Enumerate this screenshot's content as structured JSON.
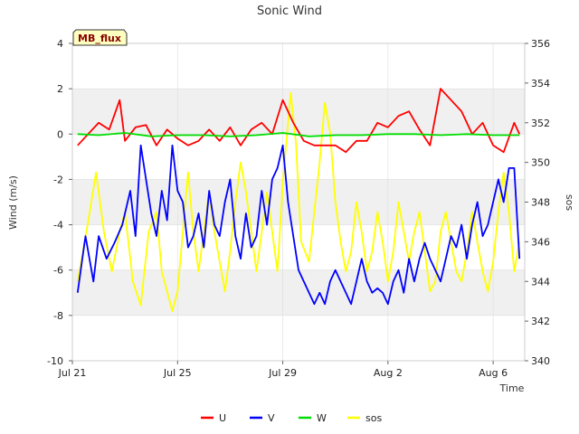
{
  "chart_data": {
    "type": "line",
    "title": "Sonic Wind",
    "badge": "MB_flux",
    "xlabel": "Time",
    "ylabel_left": "Wind (m/s)",
    "ylabel_right": "sos",
    "xlim": [
      0,
      17.2
    ],
    "ylim_left": [
      -10,
      4
    ],
    "ylim_right": [
      340,
      356
    ],
    "x_ticks": [
      {
        "label": "Jul 21",
        "day": 0
      },
      {
        "label": "Jul 25",
        "day": 4
      },
      {
        "label": "Jul 29",
        "day": 8
      },
      {
        "label": "Aug 2",
        "day": 12
      },
      {
        "label": "Aug 6",
        "day": 16
      }
    ],
    "left_ticks": [
      4,
      2,
      0,
      -2,
      -4,
      -6,
      -8,
      -10
    ],
    "right_ticks": [
      356,
      354,
      352,
      350,
      348,
      346,
      344,
      342,
      340
    ],
    "bands_left": [
      [
        0,
        2
      ],
      [
        -4,
        -2
      ],
      [
        -8,
        -6
      ]
    ],
    "series": [
      {
        "name": "U",
        "color": "#ff0000",
        "axis": "left",
        "points": [
          [
            0.2,
            -0.5
          ],
          [
            0.6,
            0
          ],
          [
            1.0,
            0.5
          ],
          [
            1.4,
            0.2
          ],
          [
            1.8,
            1.5
          ],
          [
            2.0,
            -0.3
          ],
          [
            2.4,
            0.3
          ],
          [
            2.8,
            0.4
          ],
          [
            3.2,
            -0.5
          ],
          [
            3.6,
            0.2
          ],
          [
            4.0,
            -0.2
          ],
          [
            4.4,
            -0.5
          ],
          [
            4.8,
            -0.3
          ],
          [
            5.2,
            0.2
          ],
          [
            5.6,
            -0.3
          ],
          [
            6.0,
            0.3
          ],
          [
            6.4,
            -0.5
          ],
          [
            6.8,
            0.2
          ],
          [
            7.2,
            0.5
          ],
          [
            7.6,
            0
          ],
          [
            8.0,
            1.5
          ],
          [
            8.4,
            0.5
          ],
          [
            8.8,
            -0.3
          ],
          [
            9.2,
            -0.5
          ],
          [
            9.6,
            -0.5
          ],
          [
            10.0,
            -0.5
          ],
          [
            10.4,
            -0.8
          ],
          [
            10.8,
            -0.3
          ],
          [
            11.2,
            -0.3
          ],
          [
            11.6,
            0.5
          ],
          [
            12.0,
            0.3
          ],
          [
            12.4,
            0.8
          ],
          [
            12.8,
            1.0
          ],
          [
            13.2,
            0.2
          ],
          [
            13.6,
            -0.5
          ],
          [
            14.0,
            2.0
          ],
          [
            14.4,
            1.5
          ],
          [
            14.8,
            1.0
          ],
          [
            15.2,
            0
          ],
          [
            15.6,
            0.5
          ],
          [
            16.0,
            -0.5
          ],
          [
            16.4,
            -0.8
          ],
          [
            16.8,
            0.5
          ],
          [
            17.0,
            0
          ]
        ]
      },
      {
        "name": "V",
        "color": "#0000ff",
        "axis": "left",
        "points": [
          [
            0.2,
            -7.0
          ],
          [
            0.5,
            -4.5
          ],
          [
            0.8,
            -6.5
          ],
          [
            1.0,
            -4.5
          ],
          [
            1.3,
            -5.5
          ],
          [
            1.6,
            -4.8
          ],
          [
            1.9,
            -4.0
          ],
          [
            2.2,
            -2.5
          ],
          [
            2.4,
            -4.5
          ],
          [
            2.6,
            -0.5
          ],
          [
            2.8,
            -2.0
          ],
          [
            3.0,
            -3.5
          ],
          [
            3.2,
            -4.5
          ],
          [
            3.4,
            -2.5
          ],
          [
            3.6,
            -3.8
          ],
          [
            3.8,
            -0.5
          ],
          [
            4.0,
            -2.5
          ],
          [
            4.2,
            -3.0
          ],
          [
            4.4,
            -5.0
          ],
          [
            4.6,
            -4.5
          ],
          [
            4.8,
            -3.5
          ],
          [
            5.0,
            -5.0
          ],
          [
            5.2,
            -2.5
          ],
          [
            5.4,
            -4.0
          ],
          [
            5.6,
            -4.5
          ],
          [
            5.8,
            -3.0
          ],
          [
            6.0,
            -2.0
          ],
          [
            6.2,
            -4.5
          ],
          [
            6.4,
            -5.5
          ],
          [
            6.6,
            -3.5
          ],
          [
            6.8,
            -5.0
          ],
          [
            7.0,
            -4.5
          ],
          [
            7.2,
            -2.5
          ],
          [
            7.4,
            -4.0
          ],
          [
            7.6,
            -2.0
          ],
          [
            7.8,
            -1.5
          ],
          [
            8.0,
            -0.5
          ],
          [
            8.2,
            -3.0
          ],
          [
            8.4,
            -4.5
          ],
          [
            8.6,
            -6.0
          ],
          [
            8.8,
            -6.5
          ],
          [
            9.0,
            -7.0
          ],
          [
            9.2,
            -7.5
          ],
          [
            9.4,
            -7.0
          ],
          [
            9.6,
            -7.5
          ],
          [
            9.8,
            -6.5
          ],
          [
            10.0,
            -6.0
          ],
          [
            10.2,
            -6.5
          ],
          [
            10.4,
            -7.0
          ],
          [
            10.6,
            -7.5
          ],
          [
            10.8,
            -6.5
          ],
          [
            11.0,
            -5.5
          ],
          [
            11.2,
            -6.5
          ],
          [
            11.4,
            -7.0
          ],
          [
            11.6,
            -6.8
          ],
          [
            11.8,
            -7.0
          ],
          [
            12.0,
            -7.5
          ],
          [
            12.2,
            -6.5
          ],
          [
            12.4,
            -6.0
          ],
          [
            12.6,
            -7.0
          ],
          [
            12.8,
            -5.5
          ],
          [
            13.0,
            -6.5
          ],
          [
            13.2,
            -5.5
          ],
          [
            13.4,
            -4.8
          ],
          [
            13.6,
            -5.5
          ],
          [
            13.8,
            -6.0
          ],
          [
            14.0,
            -6.5
          ],
          [
            14.2,
            -5.5
          ],
          [
            14.4,
            -4.5
          ],
          [
            14.6,
            -5.0
          ],
          [
            14.8,
            -4.0
          ],
          [
            15.0,
            -5.5
          ],
          [
            15.2,
            -4.0
          ],
          [
            15.4,
            -3.0
          ],
          [
            15.6,
            -4.5
          ],
          [
            15.8,
            -4.0
          ],
          [
            16.0,
            -3.0
          ],
          [
            16.2,
            -2.0
          ],
          [
            16.4,
            -3.0
          ],
          [
            16.6,
            -1.5
          ],
          [
            16.8,
            -1.5
          ],
          [
            17.0,
            -5.5
          ]
        ]
      },
      {
        "name": "W",
        "color": "#00dd00",
        "axis": "left",
        "points": [
          [
            0.2,
            0
          ],
          [
            1.0,
            -0.05
          ],
          [
            2.0,
            0.05
          ],
          [
            3.0,
            -0.1
          ],
          [
            4.0,
            -0.05
          ],
          [
            5.0,
            -0.05
          ],
          [
            6.0,
            -0.1
          ],
          [
            7.0,
            -0.05
          ],
          [
            8.0,
            0.05
          ],
          [
            9.0,
            -0.1
          ],
          [
            10.0,
            -0.05
          ],
          [
            11.0,
            -0.05
          ],
          [
            12.0,
            0
          ],
          [
            13.0,
            0
          ],
          [
            14.0,
            -0.05
          ],
          [
            15.0,
            0
          ],
          [
            16.0,
            -0.05
          ],
          [
            17.0,
            -0.05
          ]
        ]
      },
      {
        "name": "sos",
        "color": "#ffff00",
        "axis": "right",
        "points": [
          [
            0.2,
            344.0
          ],
          [
            0.6,
            347.0
          ],
          [
            0.9,
            349.5
          ],
          [
            1.2,
            346.5
          ],
          [
            1.5,
            344.5
          ],
          [
            1.8,
            346.5
          ],
          [
            2.0,
            347.5
          ],
          [
            2.3,
            344.0
          ],
          [
            2.6,
            342.8
          ],
          [
            2.9,
            346.5
          ],
          [
            3.2,
            347.5
          ],
          [
            3.4,
            344.5
          ],
          [
            3.6,
            343.5
          ],
          [
            3.8,
            342.5
          ],
          [
            4.0,
            343.5
          ],
          [
            4.2,
            346.5
          ],
          [
            4.4,
            349.5
          ],
          [
            4.6,
            346.5
          ],
          [
            4.8,
            344.5
          ],
          [
            5.0,
            346.5
          ],
          [
            5.2,
            348.5
          ],
          [
            5.4,
            346.5
          ],
          [
            5.6,
            345.0
          ],
          [
            5.8,
            343.5
          ],
          [
            6.0,
            345.5
          ],
          [
            6.2,
            348.0
          ],
          [
            6.4,
            350.0
          ],
          [
            6.6,
            348.5
          ],
          [
            6.8,
            346.5
          ],
          [
            7.0,
            344.5
          ],
          [
            7.2,
            346.5
          ],
          [
            7.4,
            348.5
          ],
          [
            7.6,
            346.5
          ],
          [
            7.8,
            344.5
          ],
          [
            8.0,
            349.0
          ],
          [
            8.3,
            353.5
          ],
          [
            8.5,
            351.0
          ],
          [
            8.7,
            346.0
          ],
          [
            9.0,
            345.0
          ],
          [
            9.2,
            347.5
          ],
          [
            9.4,
            350.0
          ],
          [
            9.6,
            353.0
          ],
          [
            9.8,
            351.5
          ],
          [
            10.0,
            348.0
          ],
          [
            10.2,
            346.0
          ],
          [
            10.4,
            344.5
          ],
          [
            10.6,
            345.5
          ],
          [
            10.8,
            348.0
          ],
          [
            11.0,
            346.5
          ],
          [
            11.2,
            344.5
          ],
          [
            11.4,
            345.5
          ],
          [
            11.6,
            347.5
          ],
          [
            11.8,
            346.0
          ],
          [
            12.0,
            344.0
          ],
          [
            12.2,
            345.5
          ],
          [
            12.4,
            348.0
          ],
          [
            12.6,
            346.5
          ],
          [
            12.8,
            345.0
          ],
          [
            13.0,
            346.5
          ],
          [
            13.2,
            347.5
          ],
          [
            13.4,
            345.5
          ],
          [
            13.6,
            343.5
          ],
          [
            13.8,
            344.0
          ],
          [
            14.0,
            346.5
          ],
          [
            14.2,
            347.5
          ],
          [
            14.4,
            346.0
          ],
          [
            14.6,
            344.5
          ],
          [
            14.8,
            344.0
          ],
          [
            15.0,
            345.5
          ],
          [
            15.2,
            347.5
          ],
          [
            15.4,
            346.0
          ],
          [
            15.6,
            344.5
          ],
          [
            15.8,
            343.5
          ],
          [
            16.0,
            345.0
          ],
          [
            16.2,
            347.5
          ],
          [
            16.4,
            349.5
          ],
          [
            16.6,
            347.5
          ],
          [
            16.8,
            344.5
          ],
          [
            17.0,
            346.0
          ]
        ]
      }
    ],
    "legend": [
      "U",
      "V",
      "W",
      "sos"
    ],
    "legend_position": "bottom-center"
  }
}
